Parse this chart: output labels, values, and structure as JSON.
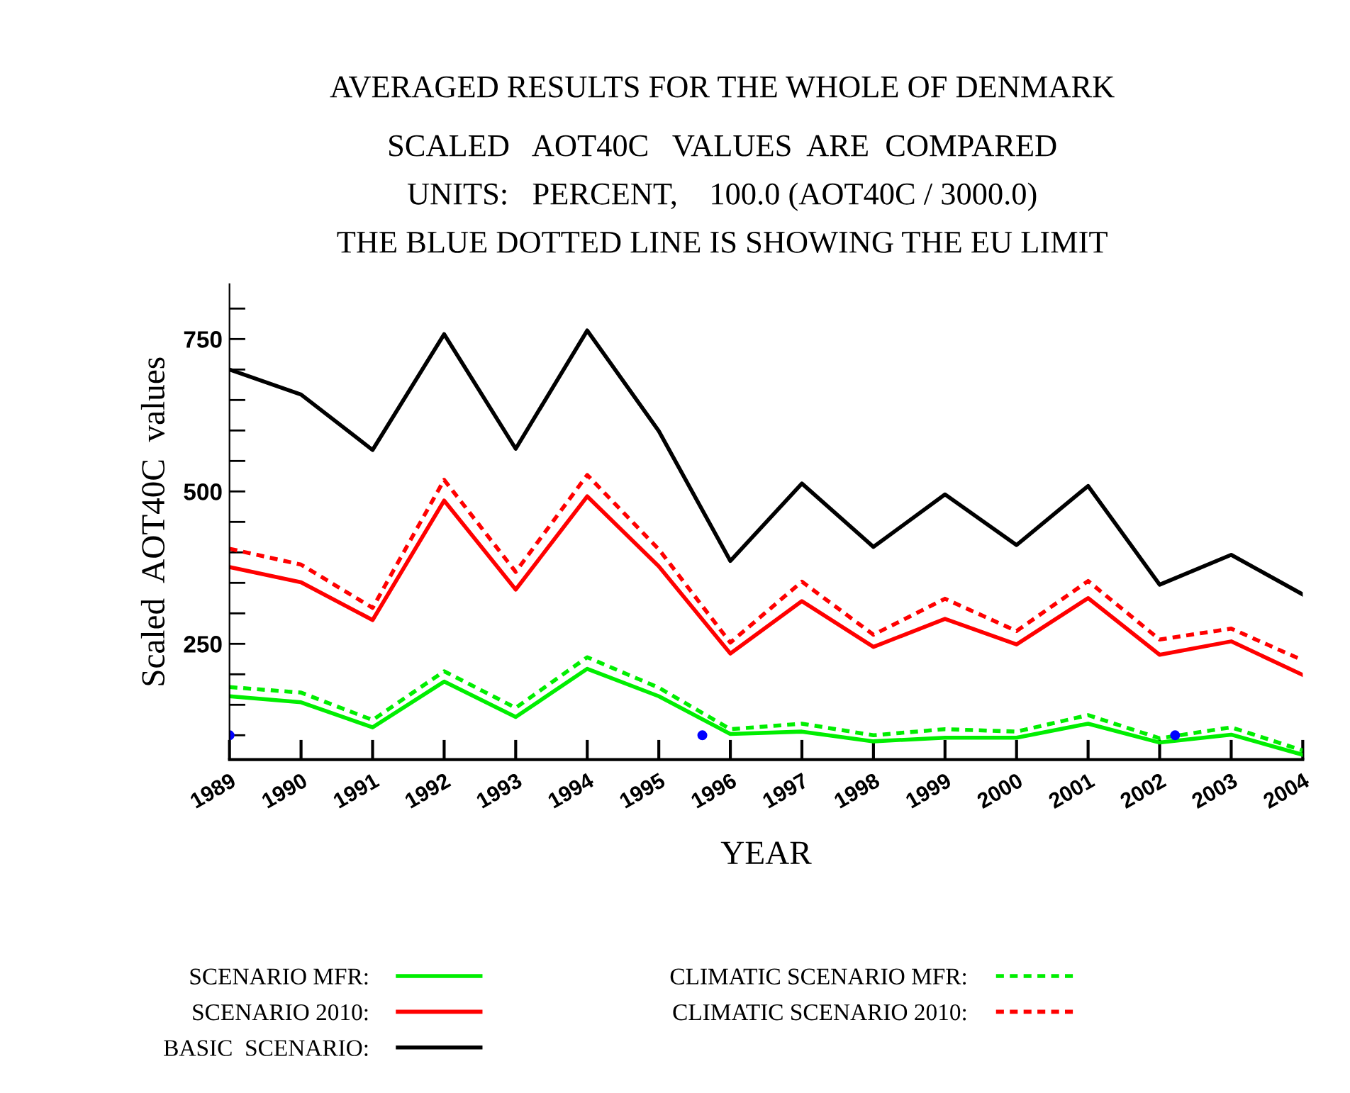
{
  "chart_data": {
    "type": "line",
    "title": "AVERAGED RESULTS FOR THE WHOLE OF DENMARK",
    "subtitle": "SCALED   AOT40C   VALUES  ARE  COMPARED\nUNITS:   PERCENT,    100.0 (AOT40C / 3000.0)\nTHE BLUE DOTTED LINE IS SHOWING THE EU LIMIT",
    "xlabel": "YEAR",
    "ylabel": "Scaled  AOT40C  values",
    "x": [
      1989,
      1990,
      1991,
      1992,
      1993,
      1994,
      1995,
      1996,
      1997,
      1998,
      1999,
      2000,
      2001,
      2002,
      2003,
      2004
    ],
    "series": [
      {
        "name": "SCENARIO MFR:",
        "color": "#00ee00",
        "line_style": "solid",
        "values": [
          164,
          154,
          113,
          188,
          130,
          209,
          164,
          102,
          106,
          90,
          96,
          96,
          119,
          88,
          101,
          68
        ]
      },
      {
        "name": "SCENARIO 2010:",
        "color": "#ff0000",
        "line_style": "solid",
        "values": [
          376,
          351,
          289,
          485,
          339,
          492,
          377,
          234,
          320,
          245,
          291,
          249,
          325,
          232,
          254,
          199
        ]
      },
      {
        "name": "BASIC  SCENARIO:",
        "color": "#000000",
        "line_style": "solid",
        "values": [
          700,
          659,
          568,
          758,
          570,
          764,
          599,
          386,
          513,
          409,
          495,
          412,
          509,
          347,
          396,
          331
        ]
      },
      {
        "name": "CLIMATIC SCENARIO MFR:",
        "color": "#00ee00",
        "line_style": "dotted",
        "values": [
          179,
          170,
          125,
          205,
          145,
          228,
          178,
          110,
          119,
          100,
          110,
          106,
          133,
          95,
          113,
          75
        ]
      },
      {
        "name": "CLIMATIC SCENARIO 2010:",
        "color": "#ff0000",
        "line_style": "dotted",
        "values": [
          406,
          380,
          309,
          519,
          368,
          527,
          405,
          252,
          352,
          265,
          324,
          271,
          353,
          257,
          275,
          223
        ]
      }
    ],
    "ref_lines": [
      {
        "axis": "y",
        "value": 100,
        "label": null,
        "color": "#0000ff",
        "line_style": "dotted"
      }
    ],
    "xlim": [
      1989,
      2004
    ],
    "xticks": [
      1989,
      1990,
      1991,
      1992,
      1993,
      1994,
      1995,
      1996,
      1997,
      1998,
      1999,
      2000,
      2001,
      2002,
      2003,
      2004
    ],
    "ylim": [
      60,
      840
    ],
    "yticks": [
      {
        "value": 100,
        "label": null
      },
      {
        "value": 150,
        "label": null
      },
      {
        "value": 200,
        "label": null
      },
      250,
      {
        "value": 300,
        "label": null
      },
      {
        "value": 350,
        "label": null
      },
      {
        "value": 400,
        "label": null
      },
      {
        "value": 450,
        "label": null
      },
      500,
      {
        "value": 550,
        "label": null
      },
      {
        "value": 600,
        "label": null
      },
      {
        "value": 650,
        "label": null
      },
      {
        "value": 700,
        "label": null
      },
      750,
      {
        "value": 800,
        "label": null
      }
    ],
    "grid": false,
    "legend": "bottom",
    "marker": "none"
  }
}
